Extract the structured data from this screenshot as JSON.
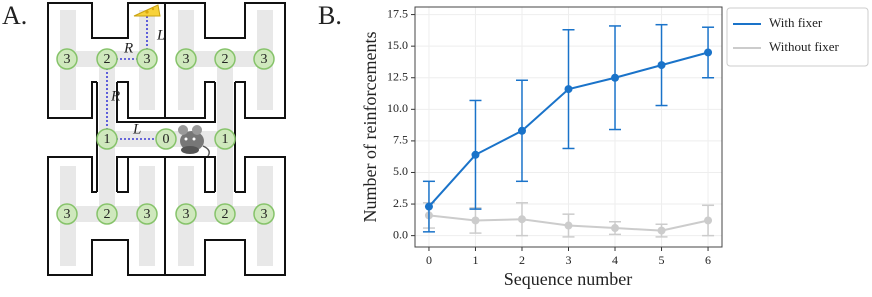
{
  "panel_labels": [
    "A.",
    "B."
  ],
  "maze": {
    "nodes": [
      "3",
      "2",
      "3",
      "3",
      "2",
      "3",
      "1",
      "0",
      "1",
      "3",
      "2",
      "3",
      "3",
      "2",
      "3"
    ],
    "edge_labels": [
      "R",
      "L",
      "R",
      "L"
    ]
  },
  "chart_data": {
    "type": "line",
    "xlabel": "Sequence number",
    "ylabel": "Number of reinforcements",
    "x": [
      0,
      1,
      2,
      3,
      4,
      5,
      6
    ],
    "series": [
      {
        "name": "With fixer",
        "color": "#1a73c9",
        "values": [
          2.3,
          6.4,
          8.3,
          11.6,
          12.5,
          13.5,
          14.5
        ],
        "errors": [
          2.0,
          4.3,
          4.0,
          4.7,
          4.1,
          3.2,
          2.0
        ]
      },
      {
        "name": "Without fixer",
        "color": "#cccccc",
        "values": [
          1.6,
          1.2,
          1.3,
          0.8,
          0.6,
          0.4,
          1.2
        ],
        "errors": [
          1.0,
          1.0,
          1.3,
          0.9,
          0.5,
          0.5,
          1.2
        ]
      }
    ],
    "xlim": [
      -0.3,
      6.3
    ],
    "xticks": [
      0,
      1,
      2,
      3,
      4,
      5,
      6
    ],
    "ylim": [
      -0.9,
      18.1
    ],
    "yticks": [
      {
        "value": 0,
        "label": "0.0"
      },
      2.5,
      {
        "value": 5,
        "label": "5.0"
      },
      7.5,
      {
        "value": 10,
        "label": "10.0"
      },
      12.5,
      {
        "value": 15,
        "label": "15.0"
      },
      17.5
    ],
    "grid": true,
    "legend": "outside-right"
  }
}
